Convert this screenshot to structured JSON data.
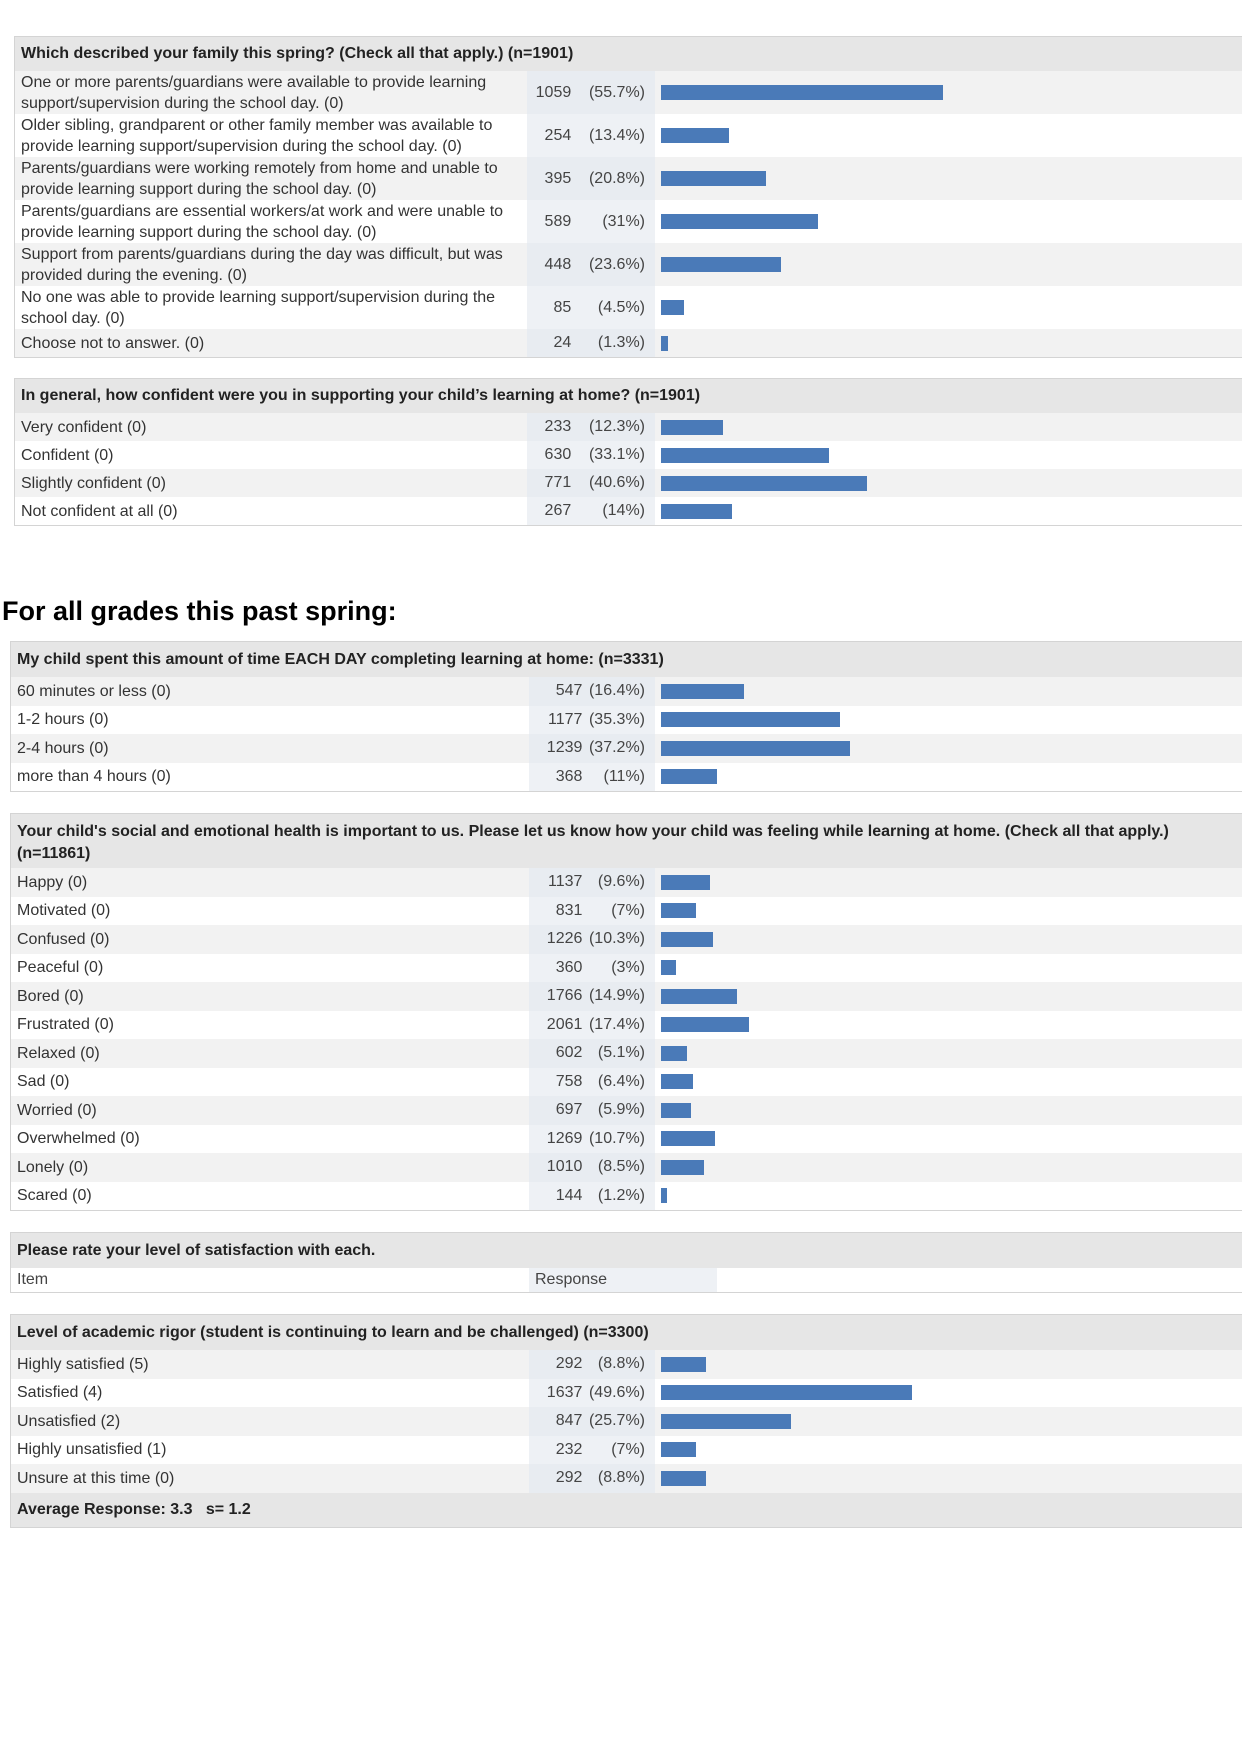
{
  "tables": [
    {
      "id": "family",
      "title": "Which described your family this spring? (Check all that apply.) (n=1901)",
      "rows": [
        {
          "label": "One or more parents/guardians were available to provide learning support/supervision during the school day. (0)",
          "count": "1059",
          "pct": "(55.7%)",
          "value": 55.7
        },
        {
          "label": "Older sibling, grandparent or other family member was available to provide learning support/supervision during the school day. (0)",
          "count": "254",
          "pct": "(13.4%)",
          "value": 13.4
        },
        {
          "label": "Parents/guardians were working remotely from home and unable to provide learning support during the school day. (0)",
          "count": "395",
          "pct": "(20.8%)",
          "value": 20.8
        },
        {
          "label": "Parents/guardians are essential workers/at work and were unable to provide learning support during the school day. (0)",
          "count": "589",
          "pct": "(31%)",
          "value": 31
        },
        {
          "label": "Support from parents/guardians during the day was difficult, but was provided during the evening. (0)",
          "count": "448",
          "pct": "(23.6%)",
          "value": 23.6
        },
        {
          "label": "No one was able to provide learning support/supervision during the school day. (0)",
          "count": "85",
          "pct": "(4.5%)",
          "value": 4.5
        },
        {
          "label": "Choose not to answer. (0)",
          "count": "24",
          "pct": "(1.3%)",
          "value": 1.3
        }
      ]
    },
    {
      "id": "confidence",
      "title": "In general, how confident were you in supporting your child’s learning at home? (n=1901)",
      "rows": [
        {
          "label": "Very confident (0)",
          "count": "233",
          "pct": "(12.3%)",
          "value": 12.3
        },
        {
          "label": "Confident (0)",
          "count": "630",
          "pct": "(33.1%)",
          "value": 33.1
        },
        {
          "label": "Slightly confident (0)",
          "count": "771",
          "pct": "(40.6%)",
          "value": 40.6
        },
        {
          "label": "Not confident at all (0)",
          "count": "267",
          "pct": "(14%)",
          "value": 14
        }
      ]
    },
    {
      "id": "time",
      "title": "My child spent this amount of time EACH DAY completing learning at home: (n=3331)",
      "rows": [
        {
          "label": "60 minutes or less (0)",
          "count": "547",
          "pct": "(16.4%)",
          "value": 16.4
        },
        {
          "label": "1-2 hours (0)",
          "count": "1177",
          "pct": "(35.3%)",
          "value": 35.3
        },
        {
          "label": "2-4 hours (0)",
          "count": "1239",
          "pct": "(37.2%)",
          "value": 37.2
        },
        {
          "label": "more than 4 hours (0)",
          "count": "368",
          "pct": "(11%)",
          "value": 11
        }
      ]
    },
    {
      "id": "feelings",
      "title": "Your child's social and emotional health is important to us. Please let us know how your child was feeling while learning at home. (Check all that apply.) (n=11861)",
      "rows": [
        {
          "label": "Happy (0)",
          "count": "1137",
          "pct": "(9.6%)",
          "value": 9.6
        },
        {
          "label": "Motivated (0)",
          "count": "831",
          "pct": "(7%)",
          "value": 7
        },
        {
          "label": "Confused (0)",
          "count": "1226",
          "pct": "(10.3%)",
          "value": 10.3
        },
        {
          "label": "Peaceful (0)",
          "count": "360",
          "pct": "(3%)",
          "value": 3
        },
        {
          "label": "Bored (0)",
          "count": "1766",
          "pct": "(14.9%)",
          "value": 14.9
        },
        {
          "label": "Frustrated (0)",
          "count": "2061",
          "pct": "(17.4%)",
          "value": 17.4
        },
        {
          "label": "Relaxed (0)",
          "count": "602",
          "pct": "(5.1%)",
          "value": 5.1
        },
        {
          "label": "Sad (0)",
          "count": "758",
          "pct": "(6.4%)",
          "value": 6.4
        },
        {
          "label": "Worried (0)",
          "count": "697",
          "pct": "(5.9%)",
          "value": 5.9
        },
        {
          "label": "Overwhelmed (0)",
          "count": "1269",
          "pct": "(10.7%)",
          "value": 10.7
        },
        {
          "label": "Lonely (0)",
          "count": "1010",
          "pct": "(8.5%)",
          "value": 8.5
        },
        {
          "label": "Scared (0)",
          "count": "144",
          "pct": "(1.2%)",
          "value": 1.2
        }
      ]
    },
    {
      "id": "rigor",
      "title": "Level of academic rigor (student is continuing to learn and be challenged) (n=3300)",
      "rows": [
        {
          "label": "Highly satisfied (5)",
          "count": "292",
          "pct": "(8.8%)",
          "value": 8.8
        },
        {
          "label": "Satisfied (4)",
          "count": "1637",
          "pct": "(49.6%)",
          "value": 49.6
        },
        {
          "label": "Unsatisfied (2)",
          "count": "847",
          "pct": "(25.7%)",
          "value": 25.7
        },
        {
          "label": "Highly unsatisfied (1)",
          "count": "232",
          "pct": "(7%)",
          "value": 7
        },
        {
          "label": "Unsure at this time (0)",
          "count": "292",
          "pct": "(8.8%)",
          "value": 8.8
        }
      ],
      "footer": "Average Response: 3.3   s= 1.2"
    }
  ],
  "section_title": "For all grades this past spring:",
  "satisfaction": {
    "title": "Please rate your level of satisfaction with each.",
    "col_item": "Item",
    "col_response": "Response"
  },
  "colors": {
    "bar": "#4a7ab8",
    "header": "#e6e6e6",
    "alt_row": "#f2f2f2"
  }
}
